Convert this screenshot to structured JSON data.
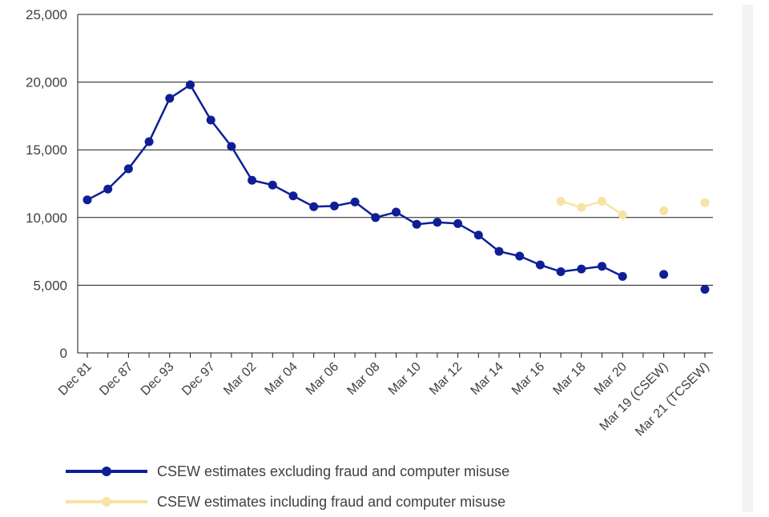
{
  "chart_data": {
    "type": "line",
    "title": "",
    "xlabel": "",
    "ylabel": "",
    "ylim": [
      0,
      25000
    ],
    "y_ticks": [
      "0",
      "5,000",
      "10,000",
      "15,000",
      "20,000",
      "25,000"
    ],
    "y_tick_values": [
      0,
      5000,
      10000,
      15000,
      20000,
      25000
    ],
    "grid": "horizontal",
    "legend_position": "bottom-left",
    "categories": [
      "Dec 81",
      "",
      "Dec 87",
      "",
      "Dec 93",
      "",
      "Dec 97",
      "",
      "Mar 02",
      "",
      "Mar 04",
      "",
      "Mar 06",
      "",
      "Mar 08",
      "",
      "Mar 10",
      "",
      "Mar 12",
      "",
      "Mar 14",
      "",
      "Mar 16",
      "",
      "Mar 18",
      "",
      "Mar 20",
      "",
      "Mar 19 (CSEW)",
      "",
      "Mar 21 (TCSEW)"
    ],
    "series": [
      {
        "name": "CSEW estimates excluding fraud and computer misuse",
        "color": "#0f1e96",
        "values": [
          11300,
          12100,
          13600,
          15600,
          18800,
          19800,
          17200,
          15250,
          12750,
          12400,
          11600,
          10800,
          10850,
          11150,
          10000,
          10400,
          9500,
          9650,
          9550,
          8700,
          7500,
          7150,
          6500,
          6000,
          6200,
          6400,
          5650,
          null,
          5800,
          null,
          4700
        ],
        "line_segments": [
          [
            0,
            26
          ]
        ],
        "points": [
          0,
          1,
          2,
          3,
          4,
          5,
          6,
          7,
          8,
          9,
          10,
          11,
          12,
          13,
          14,
          15,
          16,
          17,
          18,
          19,
          20,
          21,
          22,
          23,
          24,
          25,
          26,
          28,
          30
        ]
      },
      {
        "name": "CSEW estimates including fraud and computer misuse",
        "color": "#f7e3a3",
        "values": [
          null,
          null,
          null,
          null,
          null,
          null,
          null,
          null,
          null,
          null,
          null,
          null,
          null,
          null,
          null,
          null,
          null,
          null,
          null,
          null,
          null,
          null,
          null,
          11200,
          10750,
          11200,
          10200,
          null,
          10500,
          null,
          11100
        ],
        "line_segments": [
          [
            23,
            26
          ]
        ],
        "points": [
          23,
          24,
          25,
          26,
          28,
          30
        ]
      }
    ]
  },
  "legend": {
    "items": [
      {
        "label": "CSEW estimates excluding fraud and computer misuse",
        "color": "#0f1e96"
      },
      {
        "label": "CSEW estimates including fraud and computer misuse",
        "color": "#f7e3a3"
      }
    ]
  }
}
